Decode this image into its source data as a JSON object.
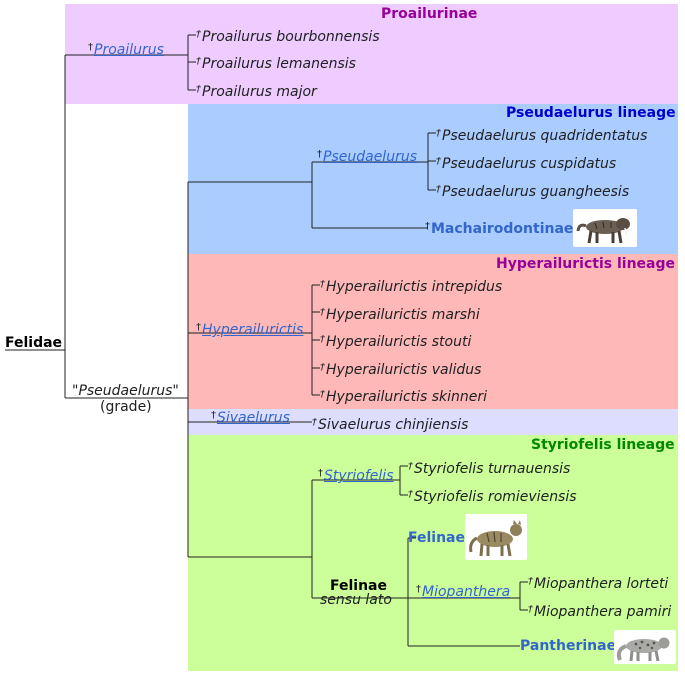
{
  "dagger": "†",
  "colors": {
    "proailurinae_bg": "#eeccff",
    "pseudaelurus_bg": "#aaccff",
    "hyperailurictis_bg": "#ffb8b8",
    "sivaelurus_bg": "#ddddff",
    "styriofelis_bg": "#ccff99",
    "proailurinae_title": "#990099",
    "pseudaelurus_title": "#0000cc",
    "hyperailurictis_title": "#990099",
    "styriofelis_title": "#008800",
    "link": "#3366cc"
  },
  "root": {
    "label": "Felidae"
  },
  "grade": {
    "label": "\"Pseudaelurus\"",
    "sublabel": "(grade)"
  },
  "bands": {
    "proailurinae": {
      "title": "Proailurinae"
    },
    "pseudaelurus": {
      "title": "Pseudaelurus lineage"
    },
    "hyperailurictis": {
      "title": "Hyperailurictis lineage"
    },
    "styriofelis": {
      "title": "Styriofelis lineage"
    }
  },
  "proailurus": {
    "genus": "Proailurus",
    "species": [
      "Proailurus bourbonnensis",
      "Proailurus lemanensis",
      "Proailurus major"
    ]
  },
  "pseudaelurus": {
    "genus": "Pseudaelurus",
    "species": [
      "Pseudaelurus quadridentatus",
      "Pseudaelurus cuspidatus",
      "Pseudaelurus guangheesis"
    ],
    "subfamily": "Machairodontinae",
    "icon": "sabertooth-cat-icon"
  },
  "hyperailurictis": {
    "genus": "Hyperailurictis",
    "species": [
      "Hyperailurictis intrepidus",
      "Hyperailurictis marshi",
      "Hyperailurictis stouti",
      "Hyperailurictis validus",
      "Hyperailurictis skinneri"
    ]
  },
  "sivaelurus": {
    "genus": "Sivaelurus",
    "species": [
      "Sivaelurus chinjiensis"
    ]
  },
  "styriofelis": {
    "genus": "Styriofelis",
    "species": [
      "Styriofelis turnauensis",
      "Styriofelis romieviensis"
    ]
  },
  "felinae": {
    "label": "Felinae",
    "sublabel": "sensu lato",
    "felinae_label": "Felinae",
    "felinae_icon": "wild-cat-icon",
    "miopanthera": {
      "genus": "Miopanthera",
      "species": [
        "Miopanthera lorteti",
        "Miopanthera pamiri"
      ]
    },
    "pantherinae_label": "Pantherinae",
    "pantherinae_icon": "snow-leopard-icon"
  }
}
